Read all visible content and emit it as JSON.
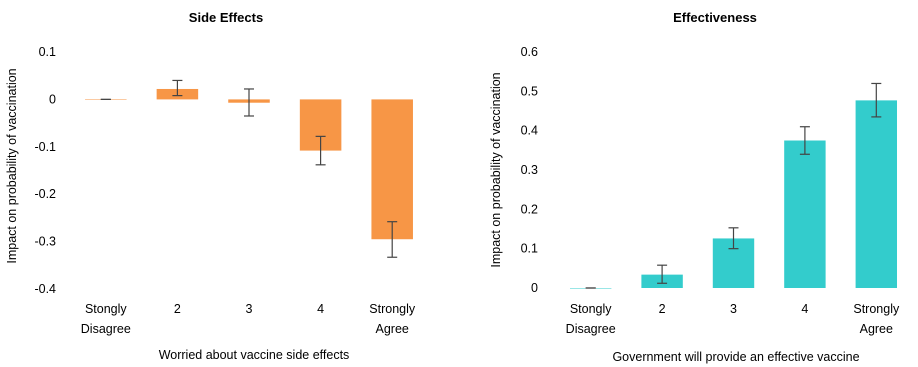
{
  "chart_data": [
    {
      "type": "bar",
      "title": "Side Effects",
      "xlabel": "Worried about vaccine side effects",
      "ylabel": "Impact on probability  of vaccination",
      "categories": [
        [
          "Stongly",
          "Disagree"
        ],
        [
          "2"
        ],
        [
          "3"
        ],
        [
          "4"
        ],
        [
          "Strongly",
          "Agree"
        ]
      ],
      "values": [
        0,
        0.022,
        -0.007,
        -0.108,
        -0.295
      ],
      "error_low": [
        0,
        0.008,
        -0.035,
        -0.138,
        -0.333
      ],
      "error_high": [
        0,
        0.04,
        0.022,
        -0.078,
        -0.258
      ],
      "ylim": [
        -0.4,
        0.1
      ],
      "yticks": [
        "0.1",
        "0",
        "-0.1",
        "-0.2",
        "-0.3",
        "-0.4"
      ],
      "ytick_values": [
        0.1,
        0,
        -0.1,
        -0.2,
        -0.3,
        -0.4
      ],
      "color": "#f79646",
      "grid": false
    },
    {
      "type": "bar",
      "title": "Effectiveness",
      "xlabel": "Government will provide an effective vaccine",
      "ylabel": "Impact on probability  of vaccination",
      "categories": [
        [
          "Stongly",
          "Disagree"
        ],
        [
          "2"
        ],
        [
          "3"
        ],
        [
          "4"
        ],
        [
          "Strongly",
          "Agree"
        ]
      ],
      "values": [
        0,
        0.034,
        0.126,
        0.375,
        0.477
      ],
      "error_low": [
        0,
        0.012,
        0.1,
        0.34,
        0.435
      ],
      "error_high": [
        0,
        0.058,
        0.153,
        0.41,
        0.52
      ],
      "ylim": [
        0,
        0.6
      ],
      "yticks": [
        "0.6",
        "0.5",
        "0.4",
        "0.3",
        "0.2",
        "0.1",
        "0"
      ],
      "ytick_values": [
        0.6,
        0.5,
        0.4,
        0.3,
        0.2,
        0.1,
        0
      ],
      "color": "#33cccc",
      "grid": false
    }
  ]
}
